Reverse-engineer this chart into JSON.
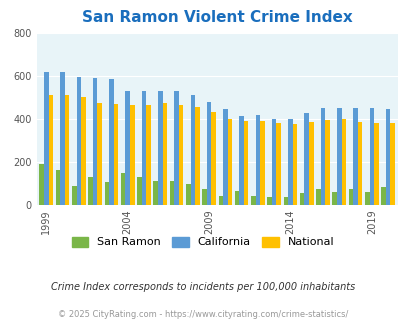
{
  "title": "San Ramon Violent Crime Index",
  "title_color": "#1a6ebd",
  "background_color": "#e8f4f8",
  "years": [
    1999,
    2000,
    2001,
    2002,
    2003,
    2004,
    2005,
    2006,
    2007,
    2008,
    2009,
    2010,
    2011,
    2012,
    2013,
    2014,
    2015,
    2016,
    2017,
    2018,
    2019,
    2020
  ],
  "san_ramon": [
    190,
    160,
    85,
    130,
    105,
    148,
    130,
    110,
    110,
    95,
    75,
    40,
    65,
    40,
    35,
    35,
    55,
    75,
    60,
    75,
    60,
    80
  ],
  "california": [
    620,
    620,
    595,
    590,
    585,
    530,
    530,
    530,
    530,
    510,
    480,
    445,
    415,
    420,
    400,
    400,
    425,
    450,
    450,
    450,
    450,
    445
  ],
  "national": [
    510,
    510,
    500,
    475,
    470,
    465,
    465,
    475,
    465,
    455,
    430,
    400,
    390,
    390,
    380,
    375,
    385,
    395,
    400,
    385,
    380,
    380
  ],
  "ylim": [
    0,
    800
  ],
  "yticks": [
    0,
    200,
    400,
    600,
    800
  ],
  "xlabel_years": [
    1999,
    2004,
    2009,
    2014,
    2019
  ],
  "bar_color_san_ramon": "#7ab648",
  "bar_color_california": "#5b9bd5",
  "bar_color_national": "#ffc000",
  "legend_labels": [
    "San Ramon",
    "California",
    "National"
  ],
  "footnote1": "Crime Index corresponds to incidents per 100,000 inhabitants",
  "footnote2": "© 2025 CityRating.com - https://www.cityrating.com/crime-statistics/",
  "footnote1_color": "#333333",
  "footnote2_color": "#999999",
  "bar_width": 0.28
}
